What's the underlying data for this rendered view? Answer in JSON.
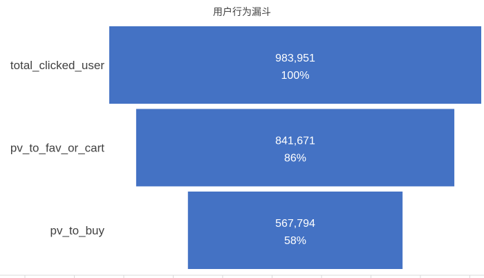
{
  "chart_data": {
    "type": "bar",
    "subtype": "funnel",
    "title": "用户行为漏斗",
    "categories": [
      "total_clicked_user",
      "pv_to_fav_or_cart",
      "pv_to_buy"
    ],
    "values": [
      983951,
      841671,
      567794
    ],
    "value_labels": [
      "983,951",
      "841,671",
      "567,794"
    ],
    "percent_labels": [
      "100%",
      "86%",
      "58%"
    ],
    "percents": [
      100,
      86,
      58
    ],
    "bar_color": "#4472C4",
    "label_color": "#ffffff",
    "category_label_color": "#404040",
    "axis_color": "#d9d9d9",
    "xlabel": "",
    "ylabel": "",
    "grid": false,
    "legend": "none"
  }
}
